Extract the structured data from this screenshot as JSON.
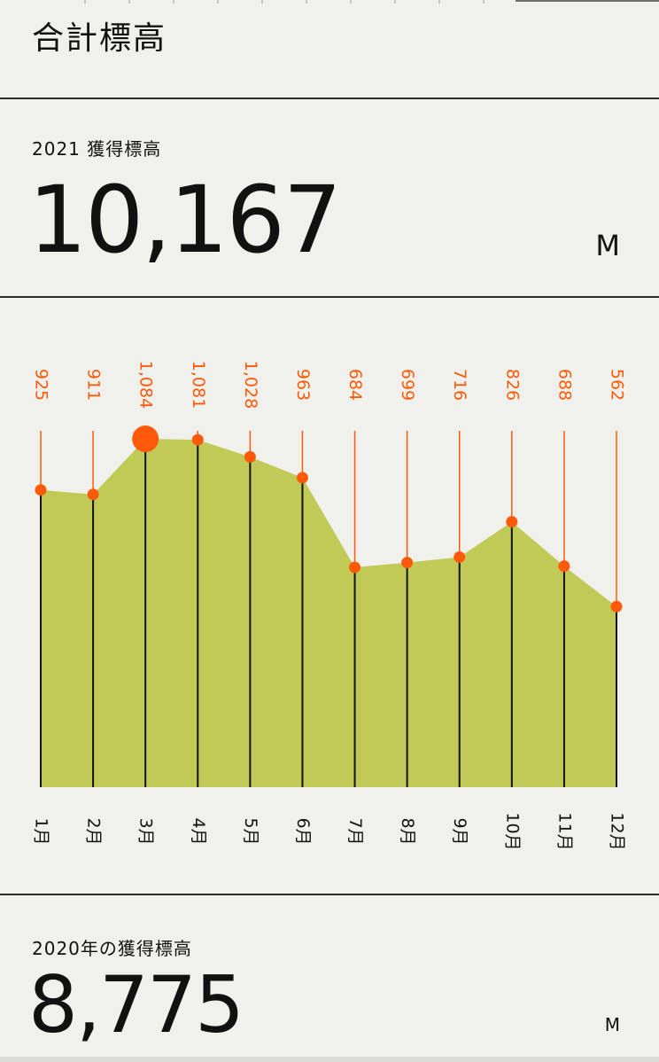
{
  "header": {
    "title": "合計標高"
  },
  "current": {
    "label": "2021 獲得標高",
    "value": "10,167",
    "unit": "M"
  },
  "previous": {
    "label": "2020年の獲得標高",
    "value": "8,775",
    "unit": "M"
  },
  "colors": {
    "area": "#c1ca56",
    "accent": "#ff5a0a",
    "line": "#111111",
    "background": "#f0f0ec"
  },
  "chart_data": {
    "type": "area",
    "categories": [
      "1月",
      "2月",
      "3月",
      "4月",
      "5月",
      "6月",
      "7月",
      "8月",
      "9月",
      "10月",
      "11月",
      "12月"
    ],
    "series": [
      {
        "values": [
          925,
          911,
          1084,
          1081,
          1028,
          963,
          684,
          699,
          716,
          826,
          688,
          562
        ]
      }
    ],
    "value_labels": [
      "925",
      "911",
      "1,084",
      "1,081",
      "1,028",
      "963",
      "684",
      "699",
      "716",
      "826",
      "688",
      "562"
    ],
    "highlight_index": 2,
    "ylim": [
      0,
      1200
    ],
    "grid": false
  }
}
